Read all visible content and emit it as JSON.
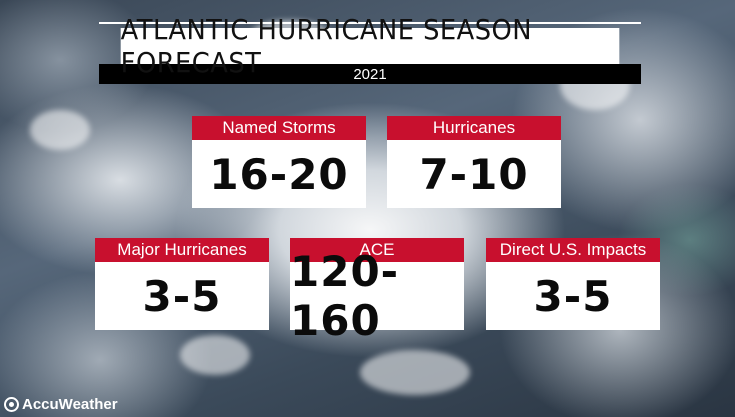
{
  "header": {
    "title": "ATLANTIC HURRICANE SEASON FORECAST",
    "year": "2021"
  },
  "stats": [
    {
      "label": "Named Storms",
      "value": "16-20"
    },
    {
      "label": "Hurricanes",
      "value": "7-10"
    },
    {
      "label": "Major Hurricanes",
      "value": "3-5"
    },
    {
      "label": "ACE",
      "value": "120-160"
    },
    {
      "label": "Direct U.S. Impacts",
      "value": "3-5"
    }
  ],
  "brand": {
    "name": "AccuWeather",
    "icon": "accuweather-logo-icon"
  },
  "colors": {
    "label_background": "#c8102e",
    "title_background": "#ffffff",
    "year_background": "#000000"
  }
}
